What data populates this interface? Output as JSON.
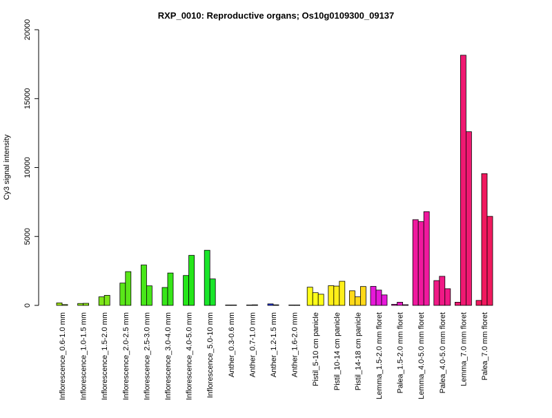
{
  "chart_data": {
    "type": "bar",
    "title": "RXP_0010: Reproductive organs; Os10g0109300_09137",
    "xlabel": "",
    "ylabel": "Cy3 signal intensity",
    "ylim": [
      0,
      20000
    ],
    "yticks": [
      "0",
      "5000",
      "10000",
      "15000",
      "20000"
    ],
    "grid": false,
    "legend": "none",
    "groups": [
      {
        "label": "Inflorescence_0.6-1.0 mm",
        "color": "#a0e619",
        "values": [
          180,
          60
        ]
      },
      {
        "label": "Inflorescence_1.0-1.5 mm",
        "color": "#8ee619",
        "values": [
          140,
          150
        ]
      },
      {
        "label": "Inflorescence_1.5-2.0 mm",
        "color": "#7de619",
        "values": [
          620,
          730
        ]
      },
      {
        "label": "Inflorescence_2.0-2.5 mm",
        "color": "#5ae619",
        "values": [
          1620,
          2450
        ]
      },
      {
        "label": "Inflorescence_2.5-3.0 mm",
        "color": "#48e619",
        "values": [
          2930,
          1420
        ]
      },
      {
        "label": "Inflorescence_3.0-4.0 mm",
        "color": "#37e619",
        "values": [
          1300,
          2350
        ]
      },
      {
        "label": "Inflorescence_4.0-5.0 mm",
        "color": "#25e619",
        "values": [
          2170,
          3630
        ]
      },
      {
        "label": "Inflorescence_5.0-10 mm",
        "color": "#19e62a",
        "values": [
          4000,
          1920
        ]
      },
      {
        "label": "Anther_0.3-0.6 mm",
        "color": "#19e6a0",
        "values": [
          10,
          15
        ]
      },
      {
        "label": "Anther_0.7-1.0 mm",
        "color": "#1970e6",
        "values": [
          20,
          40
        ]
      },
      {
        "label": "Anther_1.2-1.5 mm",
        "color": "#1930e6",
        "values": [
          110,
          40
        ]
      },
      {
        "label": "Anther_1.6-2.0 mm",
        "color": "#2519e6",
        "values": [
          10,
          10
        ]
      },
      {
        "label": "Pistil_5-10 cm panicle",
        "color": "#ffff19",
        "values": [
          1320,
          920,
          810
        ]
      },
      {
        "label": "Pistil_10-14 cm panicle",
        "color": "#ffef19",
        "values": [
          1430,
          1400,
          1750
        ]
      },
      {
        "label": "Pistil_14-18 cm panicle",
        "color": "#ffd919",
        "values": [
          1060,
          620,
          1370
        ]
      },
      {
        "label": "Lemma_1.5-2.0 mm floret",
        "color": "#e619d9",
        "values": [
          1380,
          1110,
          760
        ]
      },
      {
        "label": "Palea_1.5-2.0 mm floret",
        "color": "#e619c0",
        "values": [
          80,
          230,
          50
        ]
      },
      {
        "label": "Lemma_4.0-5.0 mm floret",
        "color": "#f0199e",
        "values": [
          6220,
          6080,
          6800
        ]
      },
      {
        "label": "Palea_4.0-5.0 mm floret",
        "color": "#f01986",
        "values": [
          1800,
          2110,
          1210
        ]
      },
      {
        "label": "Lemma_7.0 mm floret",
        "color": "#f01972",
        "values": [
          230,
          18150,
          12600
        ]
      },
      {
        "label": "Palea_7.0 mm floret",
        "color": "#f0195e",
        "values": [
          360,
          9560,
          6460
        ]
      }
    ]
  }
}
